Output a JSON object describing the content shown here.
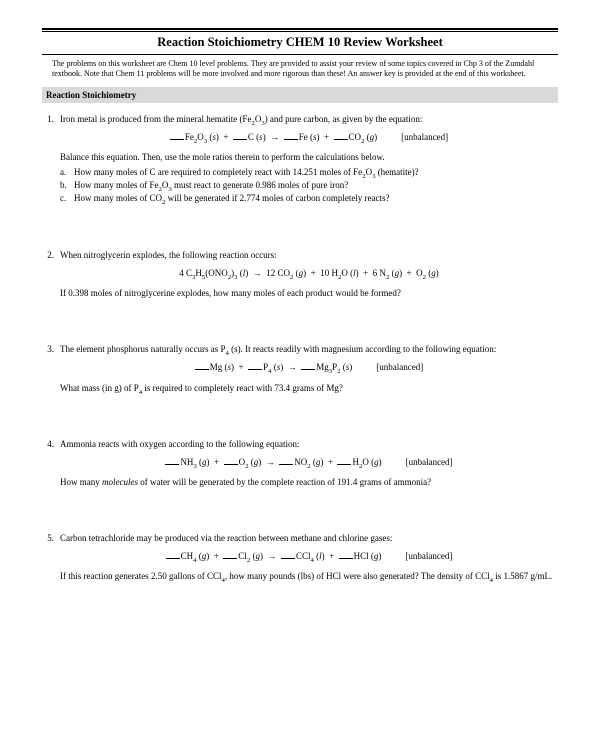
{
  "title": "Reaction Stoichiometry CHEM 10 Review Worksheet",
  "intro": "The problems on this worksheet are Chem 10 level problems.  They are provided to assist your review of some topics covered in Chp 3 of the Zumdahl textbook.  Note that Chem 11 problems will be more involved and more rigorous than these!  An answer key is provided at the end of this worksheet.",
  "section": "Reaction Stoichiometry",
  "problems": [
    {
      "num": "1.",
      "lead": "Iron metal is produced from the mineral hematite (Fe₂O₃) and pure carbon, as given by the equation:",
      "eqn_html": "<span class='blank'></span>Fe<sub>2</sub>O<sub>3</sub> (<i>s</i>) &nbsp;+&nbsp; <span class='blank'></span>C (<i>s</i>) &nbsp;→&nbsp; <span class='blank'></span>Fe (<i>s</i>) &nbsp;+&nbsp; <span class='blank'></span>CO<sub>2</sub> (<i>g</i>)<span class='tag'>[unbalanced]</span>",
      "follow": "Balance this equation.  Then, use the mole ratios therein to perform the calculations below.",
      "subs": [
        {
          "l": "a.",
          "t": "How many moles of C are required to completely react with 14.251 moles of Fe₂O₃ (hematite)?"
        },
        {
          "l": "b.",
          "t": "How many moles of Fe₂O₃ must react to generate 0.986 moles of pure iron?"
        },
        {
          "l": "c.",
          "t": "How many moles of CO₂ will be generated if 2.774 moles of carbon completely reacts?"
        }
      ]
    },
    {
      "num": "2.",
      "lead": "When nitroglycerin explodes, the following reaction occurs:",
      "eqn_html": "4 C<sub>3</sub>H<sub>5</sub>(ONO<sub>2</sub>)<sub>3</sub> (<i>l</i>) &nbsp;→&nbsp; 12 CO<sub>2</sub> (<i>g</i>) &nbsp;+&nbsp; 10 H<sub>2</sub>O (<i>l</i>) &nbsp;+&nbsp; 6 N<sub>2</sub> (<i>g</i>) &nbsp;+&nbsp; O<sub>2</sub> (<i>g</i>)",
      "follow": "If 0.398 moles of nitroglycerine explodes, how many moles of each product would be formed?"
    },
    {
      "num": "3.",
      "lead": "The element phosphorus naturally occurs as P₄ (s).  It reacts readily with magnesium according to the following equation:",
      "eqn_html": "<span class='blank'></span>Mg (<i>s</i>) &nbsp;+&nbsp; <span class='blank'></span>P<sub>4</sub> (<i>s</i>) &nbsp;→&nbsp; <span class='blank'></span>Mg<sub>3</sub>P<sub>2</sub> (<i>s</i>)<span class='tag'>[unbalanced]</span>",
      "follow": "What mass (in g) of P₄ is required to completely react with 73.4 grams of Mg?"
    },
    {
      "num": "4.",
      "lead": "Ammonia reacts with oxygen according to the following equation:",
      "eqn_html": "<span class='blank'></span>NH<sub>3</sub> (<i>g</i>) &nbsp;+&nbsp; <span class='blank'></span>O<sub>2</sub> (<i>g</i>) &nbsp;→&nbsp; <span class='blank'></span>NO<sub>2</sub> (<i>g</i>) &nbsp;+&nbsp; <span class='blank'></span>H<sub>2</sub>O (<i>g</i>)<span class='tag'>[unbalanced]</span>",
      "follow_html": "How many <i>molecules</i> of water will be generated by the complete reaction of 191.4 grams of ammonia?"
    },
    {
      "num": "5.",
      "lead": "Carbon tetrachloride may be produced via the reaction between methane and chlorine gases:",
      "eqn_html": "<span class='blank'></span>CH<sub>4</sub> (<i>g</i>) &nbsp;+&nbsp; <span class='blank'></span>Cl<sub>2</sub> (<i>g</i>) &nbsp;→&nbsp; <span class='blank'></span>CCl<sub>4</sub> (<i>l</i>) &nbsp;+&nbsp; <span class='blank'></span>HCl (<i>g</i>)<span class='tag'>[unbalanced]</span>",
      "follow": "If this reaction generates 2.50 gallons of CCl₄, how many pounds (lbs) of HCl were also generated?  The density of CCl₄ is 1.5867 g/mL."
    }
  ]
}
